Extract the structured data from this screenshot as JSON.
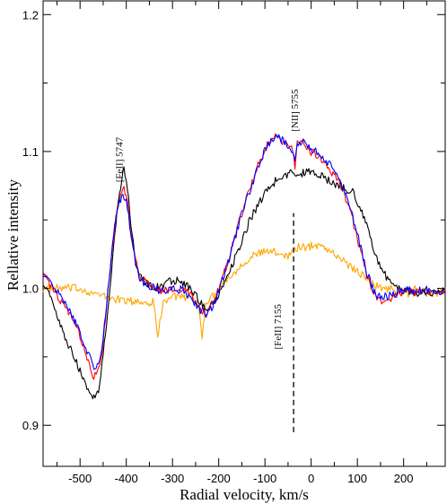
{
  "chart_data": {
    "type": "line",
    "xlabel": "Radial velocity, km/s",
    "ylabel": "Rellative intensity",
    "xlim": [
      -580,
      290
    ],
    "ylim": [
      0.87,
      1.21
    ],
    "x_ticks": [
      -500,
      -400,
      -300,
      -200,
      -100,
      0,
      100,
      200
    ],
    "y_ticks": [
      0.9,
      1.0,
      1.1,
      1.2
    ],
    "x_tick_labels": [
      "-500",
      "-400",
      "-300",
      "-200",
      "-100",
      "0",
      "100",
      "200"
    ],
    "y_tick_labels": [
      "0.9",
      "1.0",
      "1.1",
      "1.2"
    ],
    "grid": false,
    "series": [
      {
        "color": "#ffa500",
        "x": [
          -580,
          -540,
          -500,
          -460,
          -420,
          -380,
          -355,
          -340,
          -332,
          -320,
          -300,
          -270,
          -245,
          -236,
          -228,
          -210,
          -190,
          -170,
          -150,
          -130,
          -110,
          -90,
          -70,
          -50,
          -30,
          -10,
          10,
          30,
          50,
          70,
          90,
          110,
          130,
          150,
          170,
          190,
          210,
          230,
          250,
          270,
          290
        ],
        "y": [
          1.0,
          1.0,
          1.0,
          0.995,
          0.992,
          0.99,
          0.99,
          0.99,
          0.965,
          0.99,
          0.995,
          0.992,
          0.99,
          0.965,
          0.99,
          0.995,
          1.005,
          1.01,
          1.018,
          1.023,
          1.026,
          1.027,
          1.026,
          1.024,
          1.03,
          1.03,
          1.032,
          1.03,
          1.025,
          1.02,
          1.015,
          1.01,
          1.005,
          1.0,
          1.0,
          0.998,
          0.996,
          1.0,
          0.997,
          0.995,
          1.0
        ]
      },
      {
        "color": "#000000",
        "x": [
          -580,
          -560,
          -540,
          -520,
          -500,
          -480,
          -470,
          -460,
          -450,
          -440,
          -430,
          -420,
          -410,
          -405,
          -400,
          -395,
          -390,
          -380,
          -370,
          -360,
          -340,
          -320,
          -300,
          -280,
          -260,
          -240,
          -225,
          -210,
          -195,
          -180,
          -165,
          -150,
          -135,
          -120,
          -105,
          -90,
          -75,
          -60,
          -45,
          -30,
          -15,
          0,
          15,
          30,
          45,
          60,
          75,
          90,
          105,
          120,
          135,
          150,
          170,
          190,
          210,
          230,
          250,
          270,
          290
        ],
        "y": [
          1.005,
          0.99,
          0.97,
          0.955,
          0.94,
          0.925,
          0.92,
          0.925,
          0.95,
          0.985,
          1.02,
          1.055,
          1.08,
          1.087,
          1.08,
          1.065,
          1.045,
          1.02,
          1.008,
          1.005,
          1.0,
          1.003,
          1.006,
          1.005,
          1.0,
          0.99,
          0.985,
          0.99,
          1.0,
          1.01,
          1.022,
          1.035,
          1.048,
          1.058,
          1.067,
          1.074,
          1.079,
          1.082,
          1.084,
          1.083,
          1.085,
          1.086,
          1.084,
          1.08,
          1.077,
          1.075,
          1.073,
          1.07,
          1.06,
          1.045,
          1.03,
          1.015,
          1.005,
          1.0,
          0.998,
          0.997,
          0.998,
          0.997,
          0.998
        ]
      },
      {
        "color": "#ff0000",
        "x": [
          -580,
          -560,
          -540,
          -520,
          -500,
          -480,
          -470,
          -460,
          -450,
          -440,
          -430,
          -420,
          -410,
          -405,
          -400,
          -395,
          -390,
          -380,
          -370,
          -360,
          -340,
          -320,
          -300,
          -280,
          -260,
          -240,
          -225,
          -210,
          -195,
          -180,
          -165,
          -150,
          -135,
          -120,
          -105,
          -90,
          -80,
          -70,
          -60,
          -50,
          -40,
          -35,
          -30,
          -20,
          -10,
          0,
          10,
          20,
          30,
          40,
          50,
          60,
          70,
          80,
          90,
          105,
          120,
          135,
          150,
          170,
          190,
          210,
          230,
          250,
          270,
          290
        ],
        "y": [
          1.01,
          1.0,
          0.99,
          0.98,
          0.965,
          0.945,
          0.935,
          0.94,
          0.96,
          0.995,
          1.03,
          1.058,
          1.07,
          1.072,
          1.068,
          1.055,
          1.04,
          1.02,
          1.008,
          1.005,
          1.0,
          0.998,
          1.0,
          1.0,
          0.995,
          0.985,
          0.982,
          0.99,
          1.005,
          1.02,
          1.038,
          1.055,
          1.07,
          1.085,
          1.098,
          1.108,
          1.112,
          1.11,
          1.107,
          1.105,
          1.1,
          1.09,
          1.105,
          1.107,
          1.104,
          1.1,
          1.098,
          1.095,
          1.092,
          1.088,
          1.082,
          1.078,
          1.07,
          1.062,
          1.05,
          1.03,
          1.01,
          0.995,
          0.99,
          0.993,
          0.996,
          0.998,
          0.997,
          0.998,
          0.996,
          0.998
        ]
      },
      {
        "color": "#0000ff",
        "x": [
          -580,
          -560,
          -540,
          -520,
          -500,
          -480,
          -470,
          -460,
          -450,
          -440,
          -430,
          -420,
          -410,
          -405,
          -400,
          -395,
          -390,
          -380,
          -370,
          -360,
          -340,
          -320,
          -300,
          -280,
          -260,
          -240,
          -225,
          -210,
          -195,
          -180,
          -165,
          -150,
          -135,
          -120,
          -105,
          -90,
          -80,
          -70,
          -60,
          -50,
          -40,
          -35,
          -30,
          -20,
          -10,
          0,
          10,
          20,
          30,
          40,
          50,
          60,
          70,
          80,
          90,
          105,
          120,
          135,
          150,
          170,
          190,
          210,
          230,
          250,
          270,
          290
        ],
        "y": [
          1.01,
          1.003,
          0.993,
          0.982,
          0.968,
          0.95,
          0.94,
          0.945,
          0.963,
          0.998,
          1.032,
          1.058,
          1.066,
          1.068,
          1.064,
          1.052,
          1.038,
          1.018,
          1.007,
          1.004,
          1.0,
          0.998,
          0.999,
          0.999,
          0.994,
          0.984,
          0.981,
          0.989,
          1.004,
          1.019,
          1.037,
          1.054,
          1.069,
          1.084,
          1.097,
          1.107,
          1.111,
          1.11,
          1.108,
          1.105,
          1.1,
          1.092,
          1.106,
          1.108,
          1.106,
          1.102,
          1.1,
          1.097,
          1.094,
          1.09,
          1.084,
          1.08,
          1.072,
          1.064,
          1.052,
          1.033,
          1.012,
          0.998,
          0.993,
          0.995,
          0.997,
          0.999,
          0.998,
          0.999,
          0.997,
          0.999
        ]
      }
    ],
    "annotations": [
      {
        "text": "[FeII] 5747",
        "x": -408,
        "y": 1.094,
        "rotation": -90
      },
      {
        "text": "[NII] 5755",
        "x": -28,
        "y": 1.13,
        "rotation": -90
      },
      {
        "text": "[FeII] 7155",
        "x": -65,
        "y": 0.972,
        "rotation": -90
      }
    ],
    "reference_line": {
      "x": -38,
      "y_start": 0.895,
      "y_end": 1.055,
      "style": "dashed"
    }
  }
}
